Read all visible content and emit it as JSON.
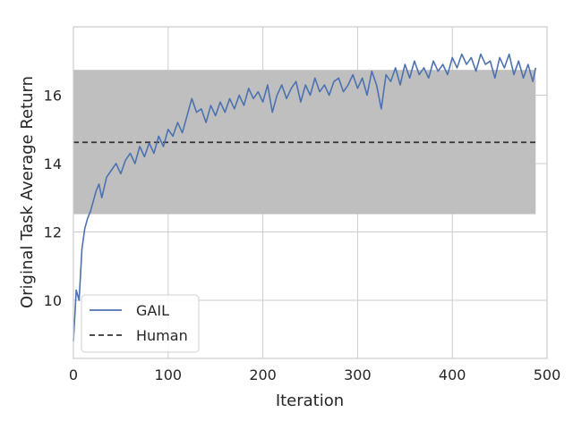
{
  "chart_data": {
    "type": "line",
    "title": "",
    "xlabel": "Iteration",
    "ylabel": "Original Task Average Return",
    "xlim": [
      0,
      500
    ],
    "ylim": [
      8.3,
      18.0
    ],
    "xticks": [
      0,
      100,
      200,
      300,
      400,
      500
    ],
    "yticks": [
      10,
      12,
      14,
      16
    ],
    "grid": true,
    "legend_position": "lower-left",
    "series": [
      {
        "name": "GAIL",
        "color": "#4c72b0",
        "style": "solid",
        "x": [
          0,
          3,
          6,
          9,
          12,
          15,
          18,
          21,
          24,
          27,
          30,
          35,
          40,
          45,
          50,
          55,
          60,
          65,
          70,
          75,
          80,
          85,
          90,
          95,
          100,
          105,
          110,
          115,
          120,
          125,
          130,
          135,
          140,
          145,
          150,
          155,
          160,
          165,
          170,
          175,
          180,
          185,
          190,
          195,
          200,
          205,
          210,
          215,
          220,
          225,
          230,
          235,
          240,
          245,
          250,
          255,
          260,
          265,
          270,
          275,
          280,
          285,
          290,
          295,
          300,
          305,
          310,
          315,
          320,
          325,
          330,
          335,
          340,
          345,
          350,
          355,
          360,
          365,
          370,
          375,
          380,
          385,
          390,
          395,
          400,
          405,
          410,
          415,
          420,
          425,
          430,
          435,
          440,
          445,
          450,
          455,
          460,
          465,
          470,
          475,
          480,
          485,
          488
        ],
        "y": [
          8.8,
          10.3,
          10.0,
          11.5,
          12.1,
          12.4,
          12.6,
          12.9,
          13.2,
          13.4,
          13.0,
          13.6,
          13.8,
          14.0,
          13.7,
          14.1,
          14.3,
          14.0,
          14.5,
          14.2,
          14.6,
          14.3,
          14.8,
          14.5,
          15.0,
          14.8,
          15.2,
          14.9,
          15.4,
          15.9,
          15.5,
          15.6,
          15.2,
          15.7,
          15.4,
          15.8,
          15.5,
          15.9,
          15.6,
          16.0,
          15.7,
          16.2,
          15.9,
          16.1,
          15.8,
          16.3,
          15.5,
          16.0,
          16.3,
          15.9,
          16.2,
          16.4,
          15.8,
          16.3,
          16.0,
          16.5,
          16.1,
          16.3,
          16.0,
          16.4,
          16.5,
          16.1,
          16.3,
          16.6,
          16.2,
          16.5,
          16.0,
          16.7,
          16.3,
          15.6,
          16.6,
          16.4,
          16.8,
          16.3,
          16.9,
          16.5,
          17.0,
          16.6,
          16.8,
          16.5,
          17.0,
          16.7,
          16.9,
          16.6,
          17.1,
          16.8,
          17.2,
          16.9,
          17.1,
          16.7,
          17.2,
          16.9,
          17.0,
          16.5,
          17.1,
          16.8,
          17.2,
          16.6,
          17.0,
          16.5,
          16.9,
          16.4,
          16.8
        ]
      },
      {
        "name": "Human",
        "color": "#333333",
        "style": "dashed",
        "x": [
          0,
          488
        ],
        "y": [
          14.62,
          14.62
        ]
      }
    ],
    "band": {
      "x_range": [
        0,
        488
      ],
      "y_range": [
        12.52,
        16.74
      ],
      "color": "#bfbfbf"
    }
  }
}
